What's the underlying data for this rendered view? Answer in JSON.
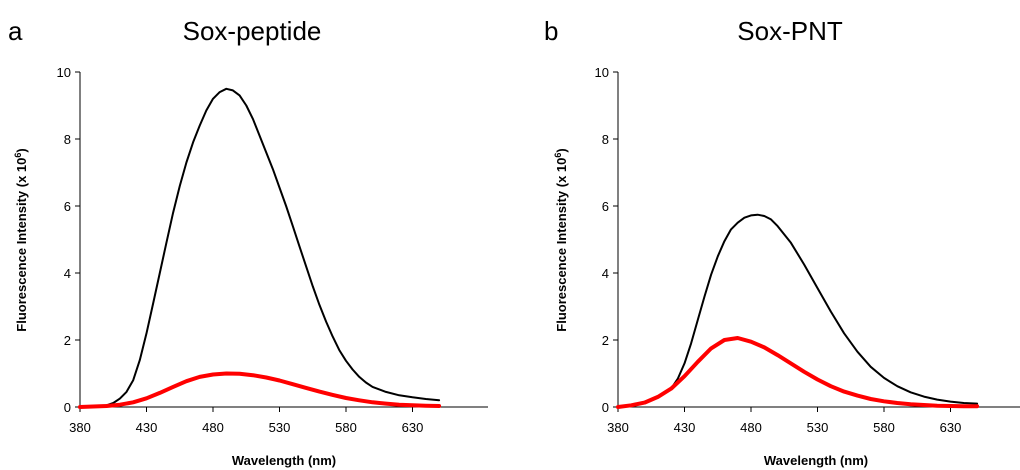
{
  "chart_data": [
    {
      "type": "line",
      "panel_label": "a",
      "title": "Sox-peptide",
      "xlabel": "Wavelength (nm)",
      "ylabel": "Fluorescence Intensity (x 10",
      "ylabel_sup": "6",
      "ylabel_tail": ")",
      "xlim": [
        380,
        650
      ],
      "ylim": [
        0,
        10
      ],
      "xticks": [
        380,
        430,
        480,
        530,
        580,
        630
      ],
      "yticks": [
        0,
        2,
        4,
        6,
        8,
        10
      ],
      "grid": false,
      "series": [
        {
          "color": "#000000",
          "x": [
            380,
            390,
            400,
            405,
            410,
            415,
            420,
            425,
            430,
            435,
            440,
            445,
            450,
            455,
            460,
            465,
            470,
            475,
            480,
            485,
            490,
            495,
            500,
            505,
            510,
            515,
            520,
            525,
            530,
            535,
            540,
            545,
            550,
            555,
            560,
            565,
            570,
            575,
            580,
            585,
            590,
            595,
            600,
            610,
            620,
            630,
            640,
            650
          ],
          "y": [
            0.0,
            0.02,
            0.05,
            0.12,
            0.25,
            0.45,
            0.8,
            1.4,
            2.2,
            3.1,
            4.0,
            4.9,
            5.8,
            6.6,
            7.3,
            7.9,
            8.4,
            8.85,
            9.2,
            9.4,
            9.5,
            9.45,
            9.3,
            9.0,
            8.6,
            8.1,
            7.6,
            7.1,
            6.55,
            6.0,
            5.4,
            4.8,
            4.2,
            3.6,
            3.05,
            2.55,
            2.1,
            1.7,
            1.38,
            1.12,
            0.9,
            0.73,
            0.6,
            0.45,
            0.35,
            0.29,
            0.24,
            0.2
          ]
        },
        {
          "color": "#ff0000",
          "x": [
            380,
            400,
            410,
            420,
            430,
            440,
            450,
            460,
            470,
            480,
            490,
            500,
            510,
            520,
            530,
            540,
            550,
            560,
            570,
            580,
            590,
            600,
            610,
            620,
            630,
            640,
            650
          ],
          "y": [
            0.0,
            0.03,
            0.07,
            0.14,
            0.26,
            0.42,
            0.6,
            0.77,
            0.9,
            0.97,
            1.0,
            0.99,
            0.95,
            0.88,
            0.79,
            0.68,
            0.57,
            0.46,
            0.36,
            0.27,
            0.2,
            0.14,
            0.1,
            0.07,
            0.05,
            0.04,
            0.03
          ]
        }
      ]
    },
    {
      "type": "line",
      "panel_label": "b",
      "title": "Sox-PNT",
      "xlabel": "Wavelength (nm)",
      "ylabel": "Fluorescence Intensity (x 10",
      "ylabel_sup": "6",
      "ylabel_tail": ")",
      "xlim": [
        380,
        650
      ],
      "ylim": [
        0,
        10
      ],
      "xticks": [
        380,
        430,
        480,
        530,
        580,
        630
      ],
      "yticks": [
        0,
        2,
        4,
        6,
        8,
        10
      ],
      "grid": false,
      "series": [
        {
          "color": "#000000",
          "x": [
            380,
            390,
            400,
            410,
            420,
            425,
            430,
            435,
            440,
            445,
            450,
            455,
            460,
            465,
            470,
            475,
            480,
            485,
            490,
            495,
            500,
            510,
            520,
            530,
            540,
            550,
            560,
            570,
            580,
            590,
            600,
            610,
            620,
            630,
            640,
            650
          ],
          "y": [
            0.0,
            0.05,
            0.12,
            0.28,
            0.55,
            0.85,
            1.3,
            1.9,
            2.6,
            3.3,
            3.95,
            4.5,
            4.95,
            5.3,
            5.5,
            5.65,
            5.72,
            5.74,
            5.7,
            5.6,
            5.4,
            4.9,
            4.25,
            3.55,
            2.85,
            2.2,
            1.65,
            1.2,
            0.87,
            0.62,
            0.44,
            0.31,
            0.22,
            0.16,
            0.12,
            0.1
          ]
        },
        {
          "color": "#ff0000",
          "x": [
            380,
            390,
            400,
            410,
            420,
            430,
            440,
            450,
            460,
            470,
            480,
            490,
            500,
            510,
            520,
            530,
            540,
            550,
            560,
            570,
            580,
            590,
            600,
            610,
            620,
            630,
            640,
            650
          ],
          "y": [
            0.0,
            0.05,
            0.13,
            0.3,
            0.55,
            0.92,
            1.35,
            1.75,
            2.0,
            2.06,
            1.95,
            1.78,
            1.55,
            1.3,
            1.05,
            0.82,
            0.62,
            0.46,
            0.34,
            0.24,
            0.17,
            0.12,
            0.08,
            0.06,
            0.04,
            0.03,
            0.02,
            0.02
          ]
        }
      ]
    }
  ]
}
